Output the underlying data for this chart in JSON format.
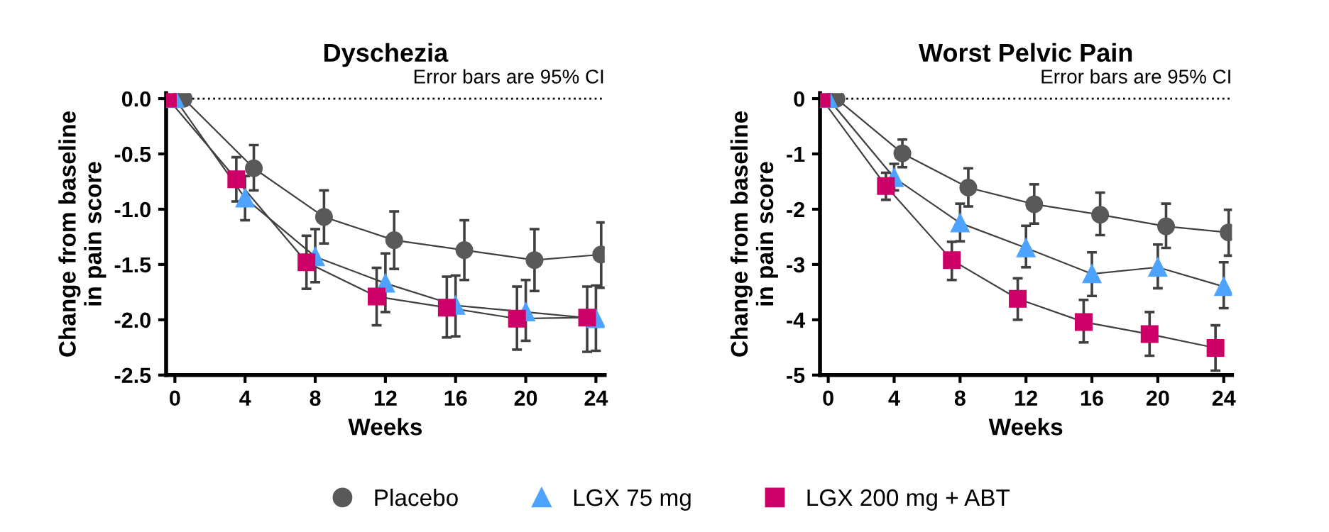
{
  "chart_data": [
    {
      "type": "line",
      "title": "Dyschezia",
      "xlabel": "Weeks",
      "ylabel": "Change from baseline\nin pain score",
      "annotations": [
        "Error bars are 95% CI"
      ],
      "xlim": [
        -0.5,
        24.5
      ],
      "xticks": [
        0,
        4,
        8,
        12,
        16,
        20,
        24
      ],
      "ylim": [
        -2.5,
        0.05
      ],
      "yticks": [
        {
          "value": -2.5,
          "label": "-2.5"
        },
        {
          "value": -2.0,
          "label": "-2.0"
        },
        {
          "value": -1.5,
          "label": "-1.5"
        },
        {
          "value": -1.0,
          "label": "-1.0"
        },
        {
          "value": -0.5,
          "label": "-0.5"
        },
        {
          "value": 0,
          "label": "0.0"
        }
      ],
      "grid": false,
      "legend": "bottom",
      "line_style": "solid",
      "ref_lines": [
        {
          "axis": "y",
          "value": 0,
          "label": null,
          "color": "#000000",
          "line_style": "dotted"
        }
      ],
      "series": [
        {
          "name": "Placebo",
          "color": "#595959",
          "marker": "circle",
          "x": [
            0.5,
            4.5,
            8.5,
            12.5,
            16.5,
            20.5,
            24.3
          ],
          "values": [
            0,
            -0.63,
            -1.07,
            -1.28,
            -1.37,
            -1.46,
            -1.41
          ],
          "errors": [
            null,
            [
              -0.83,
              -0.42
            ],
            [
              -1.31,
              -0.83
            ],
            [
              -1.54,
              -1.02
            ],
            [
              -1.64,
              -1.1
            ],
            [
              -1.74,
              -1.18
            ],
            [
              -1.71,
              -1.12
            ]
          ]
        },
        {
          "name": "LGX 75 mg",
          "color": "#4da3ff",
          "marker": "triangle",
          "x": [
            0,
            4,
            8,
            12,
            16,
            20,
            24
          ],
          "values": [
            0,
            -0.9,
            -1.43,
            -1.67,
            -1.87,
            -1.93,
            -1.99
          ],
          "errors": [
            null,
            [
              -1.1,
              -0.7
            ],
            [
              -1.66,
              -1.18
            ],
            [
              -1.93,
              -1.4
            ],
            [
              -2.15,
              -1.6
            ],
            [
              -2.19,
              -1.64
            ],
            [
              -2.28,
              -1.69
            ]
          ]
        },
        {
          "name": "LGX 200 mg + ABT",
          "color": "#cc0066",
          "marker": "square",
          "x": [
            -0.4,
            3.5,
            7.5,
            11.5,
            15.5,
            19.5,
            23.5
          ],
          "values": [
            0,
            -0.73,
            -1.48,
            -1.79,
            -1.89,
            -1.99,
            -1.98
          ],
          "errors": [
            null,
            [
              -0.93,
              -0.53
            ],
            [
              -1.72,
              -1.24
            ],
            [
              -2.05,
              -1.53
            ],
            [
              -2.16,
              -1.61
            ],
            [
              -2.27,
              -1.7
            ],
            [
              -2.29,
              -1.7
            ]
          ]
        }
      ]
    },
    {
      "type": "line",
      "title": "Worst Pelvic Pain",
      "xlabel": "Weeks",
      "ylabel": "Change from baseline\nin pain score",
      "annotations": [
        "Error bars are 95% CI"
      ],
      "xlim": [
        -0.5,
        24.5
      ],
      "xticks": [
        0,
        4,
        8,
        12,
        16,
        20,
        24
      ],
      "ylim": [
        -5,
        0.1
      ],
      "yticks": [
        -5,
        -4,
        -3,
        -2,
        -1,
        0
      ],
      "grid": false,
      "legend": "bottom",
      "line_style": "solid",
      "ref_lines": [
        {
          "axis": "y",
          "value": 0,
          "label": null,
          "color": "#000000",
          "line_style": "dotted"
        }
      ],
      "series": [
        {
          "name": "Placebo",
          "color": "#595959",
          "marker": "circle",
          "x": [
            0.5,
            4.5,
            8.5,
            12.5,
            16.5,
            20.5,
            24.3
          ],
          "values": [
            0,
            -0.99,
            -1.61,
            -1.91,
            -2.1,
            -2.31,
            -2.42
          ],
          "errors": [
            null,
            [
              -1.24,
              -0.74
            ],
            [
              -1.95,
              -1.26
            ],
            [
              -2.26,
              -1.55
            ],
            [
              -2.47,
              -1.7
            ],
            [
              -2.7,
              -1.9
            ],
            [
              -2.84,
              -2.01
            ]
          ]
        },
        {
          "name": "LGX 75 mg",
          "color": "#4da3ff",
          "marker": "triangle",
          "x": [
            0,
            4,
            8,
            12,
            16,
            20,
            24
          ],
          "values": [
            0,
            -1.43,
            -2.25,
            -2.7,
            -3.17,
            -3.05,
            -3.4
          ],
          "errors": [
            null,
            [
              -1.66,
              -1.18
            ],
            [
              -2.58,
              -1.9
            ],
            [
              -3.05,
              -2.3
            ],
            [
              -3.57,
              -2.78
            ],
            [
              -3.43,
              -2.64
            ],
            [
              -3.79,
              -2.96
            ]
          ]
        },
        {
          "name": "LGX 200 mg + ABT",
          "color": "#cc0066",
          "marker": "square",
          "x": [
            -0.4,
            3.5,
            7.5,
            11.5,
            15.5,
            19.5,
            23.5
          ],
          "values": [
            0,
            -1.58,
            -2.92,
            -3.62,
            -4.04,
            -4.26,
            -4.51
          ],
          "errors": [
            null,
            [
              -1.83,
              -1.34
            ],
            [
              -3.28,
              -2.59
            ],
            [
              -4.0,
              -3.25
            ],
            [
              -4.41,
              -3.64
            ],
            [
              -4.65,
              -3.86
            ],
            [
              -4.92,
              -4.1
            ]
          ]
        }
      ]
    }
  ]
}
